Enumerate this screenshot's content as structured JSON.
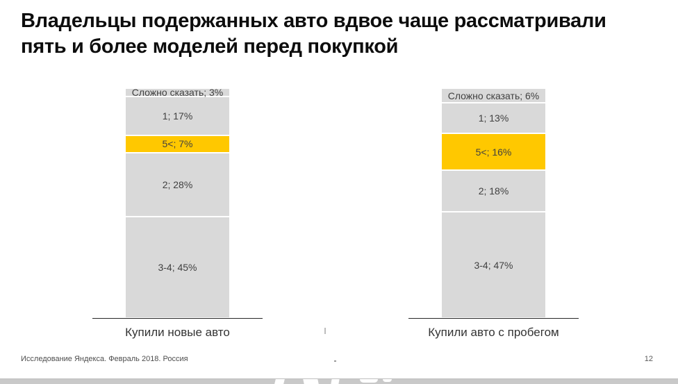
{
  "slide": {
    "title_lines": [
      "Владельцы подержанных авто вдвое чаще рассматривали",
      "пять и более моделей перед покупкой"
    ],
    "footer_source": "Исследование Яндекса. Февраль 2018. Россия",
    "page_number": "12"
  },
  "colors": {
    "segment_gray": "#d9d9d9",
    "segment_yellow": "#ffc800",
    "axis_line": "#262626",
    "segment_text": "#404040",
    "title_text": "#0d0d0d",
    "footer_text": "#4d4d4d",
    "bottom_strip": "#c9c9c9"
  },
  "chart_data": {
    "type": "bar",
    "variant": "stacked-100-percent",
    "unit": "percent",
    "gridlines": false,
    "legend": "none",
    "categories": [
      "Купили новые авто",
      "Купили авто с пробегом"
    ],
    "segment_order": "top-to-bottom",
    "series": [
      {
        "name": "Сложно сказать",
        "values": [
          3,
          6
        ],
        "color": "#d9d9d9"
      },
      {
        "name": "1",
        "values": [
          17,
          13
        ],
        "color": "#d9d9d9"
      },
      {
        "name": "5<",
        "values": [
          7,
          16
        ],
        "color": "#ffc800"
      },
      {
        "name": "2",
        "values": [
          28,
          18
        ],
        "color": "#d9d9d9"
      },
      {
        "name": "3-4",
        "values": [
          45,
          47
        ],
        "color": "#d9d9d9"
      }
    ],
    "highlighted_series": "5<",
    "data_labels": [
      [
        "Сложно сказать; 3%",
        "1; 17%",
        "5<; 7%",
        "2; 28%",
        "3-4; 45%"
      ],
      [
        "Сложно сказать; 6%",
        "1; 13%",
        "5<; 16%",
        "2; 18%",
        "3-4; 47%"
      ]
    ]
  }
}
